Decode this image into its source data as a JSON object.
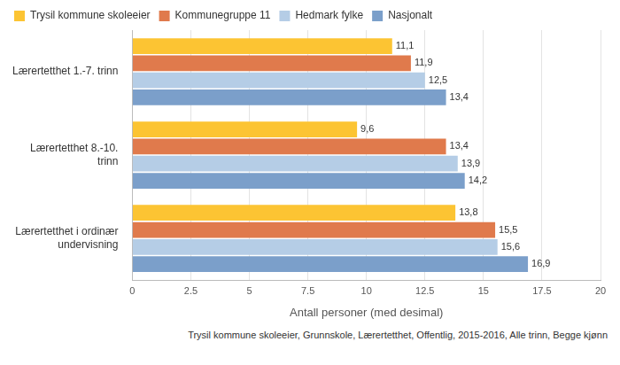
{
  "chart_data": {
    "type": "bar",
    "orientation": "horizontal",
    "caption": "Trysil kommune skoleeier, Grunnskole, Lærertetthet, Offentlig, 2015-2016, Alle trinn, Begge kjønn",
    "xlabel": "Antall personer (med desimal)",
    "categories": [
      "Lærertetthet 1.-7. trinn",
      "Lærertetthet 8.-10. trinn",
      "Lærertetthet i ordinær undervisning"
    ],
    "series": [
      {
        "name": "Trysil kommune skoleeier",
        "color": "#fcc433",
        "values": [
          11.1,
          9.6,
          13.8
        ],
        "value_labels": [
          "11,1",
          "9,6",
          "13,8"
        ]
      },
      {
        "name": "Kommunegruppe 11",
        "color": "#e07a4c",
        "values": [
          11.9,
          13.4,
          15.5
        ],
        "value_labels": [
          "11,9",
          "13,4",
          "15,5"
        ]
      },
      {
        "name": "Hedmark fylke",
        "color": "#b5cde6",
        "values": [
          12.5,
          13.9,
          15.6
        ],
        "value_labels": [
          "12,5",
          "13,9",
          "15,6"
        ]
      },
      {
        "name": "Nasjonalt",
        "color": "#7b9fca",
        "values": [
          13.4,
          14.2,
          16.9
        ],
        "value_labels": [
          "13,4",
          "14,2",
          "16,9"
        ]
      }
    ],
    "xlim": [
      0,
      20
    ],
    "xticks": [
      0,
      2.5,
      5,
      7.5,
      10,
      12.5,
      15,
      17.5,
      20
    ],
    "grid": true,
    "legend": "top",
    "data_labels": true
  }
}
